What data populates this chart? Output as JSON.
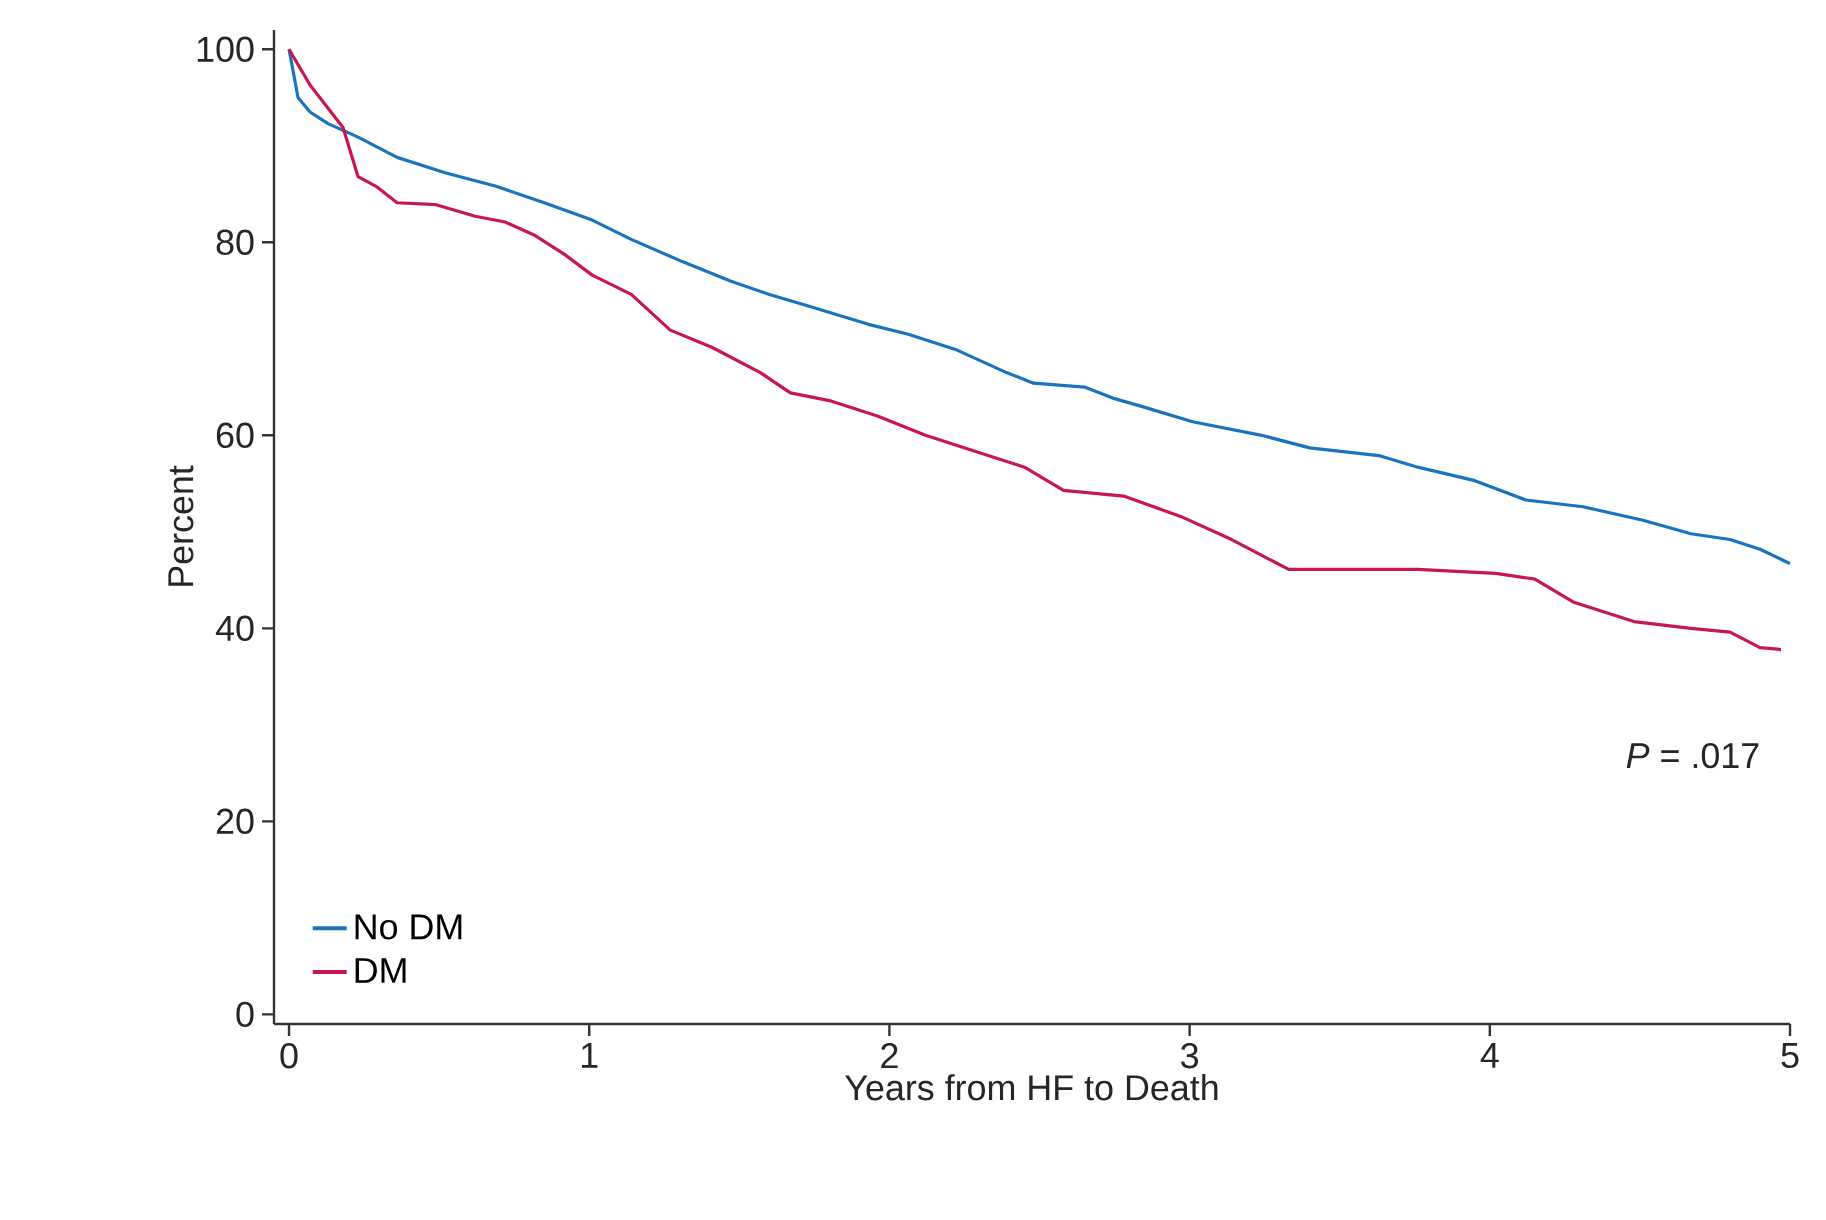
{
  "chart_data": {
    "type": "line",
    "xlabel": "Years from HF to Death",
    "ylabel": "Percent",
    "xlim": [
      -0.05,
      5
    ],
    "ylim": [
      -1,
      102
    ],
    "xticks": [
      0,
      1,
      2,
      3,
      4,
      5
    ],
    "yticks": [
      0,
      20,
      40,
      60,
      80,
      100
    ],
    "legend": "bottom left",
    "grid": false,
    "line_style": "solid",
    "marker": "none",
    "annotations": [
      "*P* = .017"
    ],
    "series": [
      {
        "name": "No DM",
        "color": "#1a73bd",
        "x": [
          0,
          0.03,
          0.07,
          0.13,
          0.23,
          0.36,
          0.52,
          0.69,
          0.85,
          1.01,
          1.14,
          1.31,
          1.47,
          1.6,
          1.73,
          1.93,
          2.06,
          2.22,
          2.39,
          2.48,
          2.65,
          2.75,
          2.84,
          3.01,
          3.24,
          3.4,
          3.63,
          3.76,
          3.95,
          4.12,
          4.31,
          4.51,
          4.67,
          4.8,
          4.9,
          5.0
        ],
        "values": [
          100,
          95,
          93.5,
          92.3,
          90.9,
          88.8,
          87.2,
          85.8,
          84.1,
          82.3,
          80.3,
          78,
          76,
          74.6,
          73.4,
          71.5,
          70.5,
          68.9,
          66.5,
          65.4,
          65,
          63.8,
          63,
          61.4,
          60,
          58.7,
          57.9,
          56.7,
          55.3,
          53.3,
          52.6,
          51.2,
          49.8,
          49.2,
          48.2,
          46.7
        ]
      },
      {
        "name": "DM",
        "color": "#c8174a",
        "x": [
          0,
          0.07,
          0.13,
          0.18,
          0.23,
          0.29,
          0.36,
          0.49,
          0.62,
          0.72,
          0.82,
          0.92,
          1.01,
          1.14,
          1.27,
          1.41,
          1.57,
          1.67,
          1.8,
          1.96,
          2.12,
          2.29,
          2.45,
          2.58,
          2.78,
          2.97,
          3.14,
          3.33,
          3.76,
          4.02,
          4.15,
          4.28,
          4.48,
          4.67,
          4.8,
          4.9,
          4.97
        ],
        "values": [
          100,
          96.3,
          93.9,
          91.9,
          86.8,
          85.8,
          84.1,
          83.9,
          82.7,
          82.1,
          80.7,
          78.7,
          76.6,
          74.6,
          70.9,
          69.1,
          66.5,
          64.4,
          63.6,
          62,
          60,
          58.3,
          56.7,
          54.3,
          53.7,
          51.6,
          49.2,
          46.1,
          46.1,
          45.7,
          45.1,
          42.7,
          40.7,
          40,
          39.6,
          38,
          37.8
        ]
      }
    ]
  }
}
